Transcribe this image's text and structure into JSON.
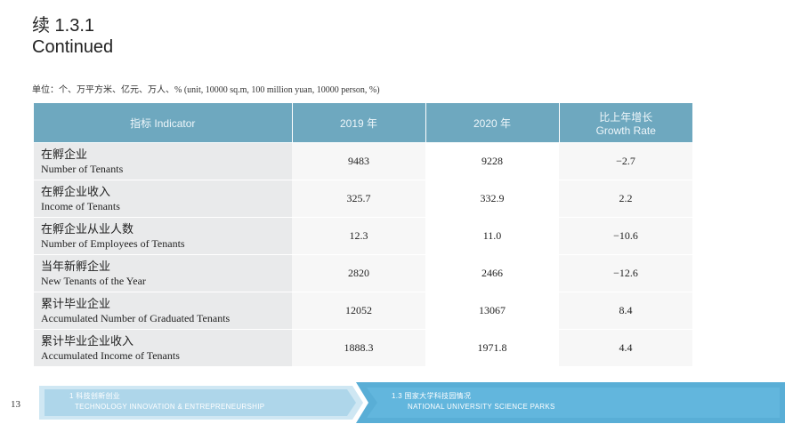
{
  "header": {
    "title_zh": "续 1.3.1",
    "title_en": "Continued",
    "unit": "单位：个、万平方米、亿元、万人、% (unit, 10000 sq.m, 100 million yuan, 10000 person, %)"
  },
  "table": {
    "headers": {
      "indicator": "指标 Indicator",
      "y2019": "2019 年",
      "y2020": "2020 年",
      "growth_zh": "比上年增长",
      "growth_en": "Growth Rate"
    },
    "rows": [
      {
        "zh": "在孵企业",
        "en": "Number of Tenants",
        "v2019": "9483",
        "v2020": "9228",
        "growth": "−2.7"
      },
      {
        "zh": "在孵企业收入",
        "en": "Income of Tenants",
        "v2019": "325.7",
        "v2020": "332.9",
        "growth": "2.2"
      },
      {
        "zh": "在孵企业从业人数",
        "en": "Number of Employees of Tenants",
        "v2019": "12.3",
        "v2020": "11.0",
        "growth": "−10.6"
      },
      {
        "zh": "当年新孵企业",
        "en": "New Tenants of the Year",
        "v2019": "2820",
        "v2020": "2466",
        "growth": "−12.6"
      },
      {
        "zh": "累计毕业企业",
        "en": "Accumulated Number of Graduated Tenants",
        "v2019": "12052",
        "v2020": "13067",
        "growth": "8.4"
      },
      {
        "zh": "累计毕业企业收入",
        "en": "Accumulated Income of Tenants",
        "v2019": "1888.3",
        "v2020": "1971.8",
        "growth": "4.4"
      }
    ]
  },
  "footer": {
    "page_number": "13",
    "left_zh": "1 科技创新创业",
    "left_en": "TECHNOLOGY INNOVATION & ENTREPRENEURSHIP",
    "right_zh": "1.3 国家大学科技园情况",
    "right_en": "NATIONAL UNIVERSITY SCIENCE PARKS"
  },
  "colors": {
    "header_bg": "#6ea8bf",
    "footer_light": "#cfe7f3",
    "footer_dark": "#59aed6"
  }
}
